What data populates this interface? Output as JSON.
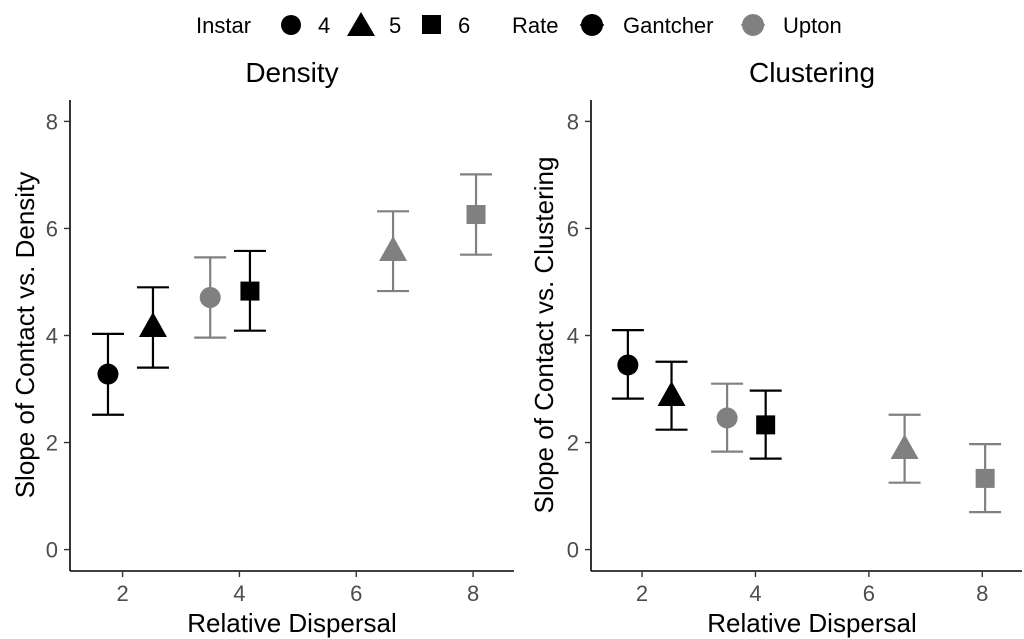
{
  "legend": {
    "instar_title": "Instar",
    "instar_items": [
      {
        "label": "4",
        "shape": "circle"
      },
      {
        "label": "5",
        "shape": "triangle"
      },
      {
        "label": "6",
        "shape": "square"
      }
    ],
    "rate_title": "Rate",
    "rate_items": [
      {
        "label": "Gantcher",
        "color": "#000000"
      },
      {
        "label": "Upton",
        "color": "#808080"
      }
    ],
    "placement": "top"
  },
  "chart_data": [
    {
      "type": "scatter",
      "title": "Density",
      "xlabel": "Relative Dispersal",
      "ylabel": "Slope of Contact vs. Density",
      "xlim": [
        1.1,
        8.7
      ],
      "ylim": [
        -0.4,
        8.4
      ],
      "xticks": [
        2,
        4,
        6,
        8
      ],
      "yticks": [
        0,
        2,
        4,
        6,
        8
      ],
      "grid": false,
      "points": [
        {
          "x": 1.75,
          "y": 3.28,
          "ylow": 2.52,
          "yhigh": 4.03,
          "instar": "4",
          "rate": "Gantcher"
        },
        {
          "x": 2.52,
          "y": 4.16,
          "ylow": 3.4,
          "yhigh": 4.9,
          "instar": "5",
          "rate": "Gantcher"
        },
        {
          "x": 3.5,
          "y": 4.71,
          "ylow": 3.96,
          "yhigh": 5.46,
          "instar": "4",
          "rate": "Upton"
        },
        {
          "x": 4.18,
          "y": 4.83,
          "ylow": 4.09,
          "yhigh": 5.58,
          "instar": "6",
          "rate": "Gantcher"
        },
        {
          "x": 6.63,
          "y": 5.58,
          "ylow": 4.83,
          "yhigh": 6.32,
          "instar": "5",
          "rate": "Upton"
        },
        {
          "x": 8.05,
          "y": 6.26,
          "ylow": 5.51,
          "yhigh": 7.01,
          "instar": "6",
          "rate": "Upton"
        }
      ]
    },
    {
      "type": "scatter",
      "title": "Clustering",
      "xlabel": "Relative Dispersal",
      "ylabel": "Slope of Contact vs. Clustering",
      "xlim": [
        1.1,
        8.7
      ],
      "ylim": [
        -0.4,
        8.4
      ],
      "xticks": [
        2,
        4,
        6,
        8
      ],
      "yticks": [
        0,
        2,
        4,
        6,
        8
      ],
      "grid": false,
      "points": [
        {
          "x": 1.75,
          "y": 3.45,
          "ylow": 2.82,
          "yhigh": 4.1,
          "instar": "4",
          "rate": "Gantcher"
        },
        {
          "x": 2.52,
          "y": 2.87,
          "ylow": 2.24,
          "yhigh": 3.51,
          "instar": "5",
          "rate": "Gantcher"
        },
        {
          "x": 3.5,
          "y": 2.46,
          "ylow": 1.83,
          "yhigh": 3.1,
          "instar": "4",
          "rate": "Upton"
        },
        {
          "x": 4.18,
          "y": 2.33,
          "ylow": 1.7,
          "yhigh": 2.97,
          "instar": "6",
          "rate": "Gantcher"
        },
        {
          "x": 6.63,
          "y": 1.88,
          "ylow": 1.25,
          "yhigh": 2.52,
          "instar": "5",
          "rate": "Upton"
        },
        {
          "x": 8.05,
          "y": 1.33,
          "ylow": 0.7,
          "yhigh": 1.97,
          "instar": "6",
          "rate": "Upton"
        }
      ]
    }
  ]
}
